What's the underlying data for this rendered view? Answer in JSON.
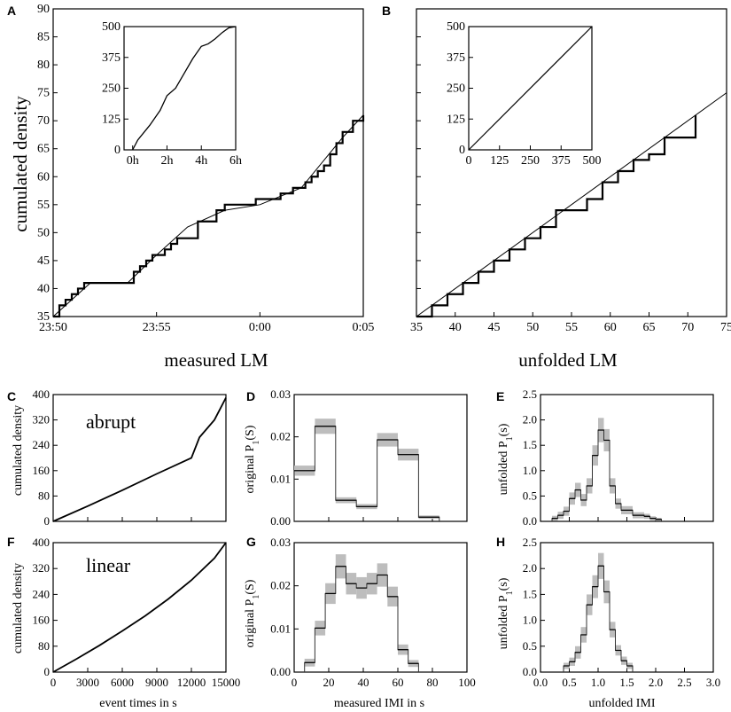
{
  "figure": {
    "colors": {
      "ink": "#000000",
      "band": "#bdbdbd",
      "background": "#ffffff"
    }
  },
  "chart_data": [
    {
      "id": "A",
      "type": "line",
      "panel_label": "A",
      "xlabel": "measured LM",
      "ylabel": "cumulated density",
      "xlim": [
        0,
        15
      ],
      "ylim": [
        35,
        90
      ],
      "x_tick_labels": [
        "23:50",
        "23:55",
        "0:00",
        "0:05"
      ],
      "x_tick_values": [
        0,
        5,
        10,
        15
      ],
      "y_ticks": [
        35,
        40,
        45,
        50,
        55,
        60,
        65,
        70,
        75,
        80,
        85,
        90
      ],
      "series": [
        {
          "name": "measured staircase",
          "x": [
            0.0,
            0.3,
            0.6,
            0.9,
            1.2,
            1.5,
            1.8,
            3.6,
            3.9,
            4.2,
            4.5,
            4.8,
            5.1,
            5.4,
            5.7,
            6.0,
            7.0,
            7.9,
            8.3,
            8.6,
            9.0,
            9.4,
            9.8,
            10.2,
            10.6,
            11.0,
            11.3,
            11.6,
            11.9,
            12.2,
            12.5,
            12.8,
            13.1,
            13.4,
            13.7,
            14.0,
            14.5,
            15.0
          ],
          "y": [
            35,
            37,
            38,
            39,
            40,
            41,
            41,
            41,
            43,
            44,
            45,
            46,
            46,
            47,
            48,
            49,
            52,
            54,
            55,
            55,
            55,
            55,
            56,
            56,
            56,
            57,
            57,
            58,
            58,
            59,
            60,
            61,
            62,
            64,
            66,
            68,
            70,
            71
          ]
        },
        {
          "name": "smooth fit",
          "x": [
            0.0,
            1.8,
            3.6,
            5.0,
            6.5,
            8.3,
            10.0,
            12.0,
            14.0,
            15.0
          ],
          "y": [
            35,
            41,
            41,
            46,
            51,
            54,
            55,
            58,
            67,
            71
          ]
        }
      ],
      "inset": {
        "type": "line",
        "xlim": [
          -0.5,
          6
        ],
        "ylim": [
          0,
          500
        ],
        "x_tick_labels": [
          "0h",
          "2h",
          "4h",
          "6h"
        ],
        "x_tick_values": [
          0,
          2,
          4,
          6
        ],
        "y_ticks": [
          0,
          125,
          250,
          375,
          500
        ],
        "series": [
          {
            "name": "cumulative events",
            "x": [
              0.0,
              0.3,
              1.0,
              1.6,
              2.0,
              2.5,
              3.0,
              3.5,
              4.0,
              4.4,
              4.8,
              5.2,
              5.6,
              6.0
            ],
            "y": [
              0,
              40,
              100,
              160,
              220,
              250,
              310,
              370,
              420,
              430,
              450,
              475,
              495,
              510
            ]
          }
        ]
      }
    },
    {
      "id": "B",
      "type": "line",
      "panel_label": "B",
      "xlabel": "unfolded LM",
      "xlim": [
        35,
        75
      ],
      "ylim": [
        35,
        90
      ],
      "x_ticks": [
        35,
        40,
        45,
        50,
        55,
        60,
        65,
        70,
        75
      ],
      "series": [
        {
          "name": "unfolded staircase",
          "x": [
            35,
            37,
            39,
            41,
            43,
            45,
            47,
            49,
            51,
            53,
            55,
            57,
            59,
            61,
            63,
            65,
            67,
            69,
            71
          ],
          "y": [
            35,
            37,
            39,
            41,
            43,
            45,
            47,
            49,
            51,
            54,
            54,
            56,
            59,
            61,
            63,
            64,
            67,
            67,
            71
          ]
        },
        {
          "name": "unit diagonal",
          "x": [
            35,
            75
          ],
          "y": [
            35,
            75
          ]
        }
      ],
      "inset": {
        "type": "line",
        "xlim": [
          0,
          500
        ],
        "ylim": [
          0,
          500
        ],
        "x_ticks": [
          0,
          125,
          250,
          375,
          500
        ],
        "y_ticks": [
          0,
          125,
          250,
          375,
          500
        ],
        "series": [
          {
            "name": "unfolded cumulative",
            "x": [
              0,
              500
            ],
            "y": [
              0,
              500
            ]
          }
        ]
      }
    },
    {
      "id": "C",
      "type": "line",
      "panel_label": "C",
      "ylabel": "cumulated density",
      "annotation": "abrupt",
      "xlim": [
        0,
        15000
      ],
      "ylim": [
        0,
        400
      ],
      "y_ticks": [
        0,
        80,
        160,
        240,
        320,
        400
      ],
      "series": [
        {
          "name": "abrupt",
          "x": [
            0,
            3000,
            6000,
            9000,
            12000,
            12700,
            14000,
            15000
          ],
          "y": [
            0,
            48,
            98,
            150,
            200,
            265,
            320,
            390
          ]
        }
      ]
    },
    {
      "id": "F",
      "type": "line",
      "panel_label": "F",
      "ylabel": "cumulated density",
      "xlabel": "event times in s",
      "annotation": "linear",
      "xlim": [
        0,
        15000
      ],
      "ylim": [
        0,
        400
      ],
      "x_ticks": [
        0,
        3000,
        6000,
        9000,
        12000,
        15000
      ],
      "y_ticks": [
        0,
        80,
        160,
        240,
        320,
        400
      ],
      "series": [
        {
          "name": "linear",
          "x": [
            0,
            2000,
            4000,
            6000,
            8000,
            10000,
            12000,
            14000,
            15000
          ],
          "y": [
            0,
            40,
            82,
            127,
            174,
            226,
            284,
            352,
            400
          ]
        }
      ]
    },
    {
      "id": "D",
      "type": "bar",
      "panel_label": "D",
      "ylabel_main": "original P",
      "ylabel_sub": "1",
      "ylabel_tail": "(S)",
      "xlim": [
        0,
        100
      ],
      "ylim": [
        0,
        0.03
      ],
      "y_ticks": [
        0.0,
        0.01,
        0.02,
        0.03
      ],
      "bin_width": 12,
      "bin_starts": [
        0,
        12,
        24,
        36,
        48,
        60,
        72
      ],
      "values": [
        0.012,
        0.0225,
        0.005,
        0.0035,
        0.0193,
        0.0158,
        0.001
      ],
      "errors": [
        0.0012,
        0.0018,
        0.0007,
        0.0006,
        0.0016,
        0.0014,
        0.0004
      ]
    },
    {
      "id": "G",
      "type": "bar",
      "panel_label": "G",
      "ylabel_main": "original P",
      "ylabel_sub": "1",
      "ylabel_tail": "(S)",
      "xlabel": "measured IMI in s",
      "xlim": [
        0,
        100
      ],
      "ylim": [
        0,
        0.03
      ],
      "x_ticks": [
        0,
        20,
        40,
        60,
        80,
        100
      ],
      "y_ticks": [
        0.0,
        0.01,
        0.02,
        0.03
      ],
      "bin_width": 6,
      "bin_starts": [
        6,
        12,
        18,
        24,
        30,
        36,
        42,
        48,
        54,
        60,
        66
      ],
      "values": [
        0.0022,
        0.0102,
        0.0182,
        0.0245,
        0.0205,
        0.0195,
        0.0205,
        0.0225,
        0.0175,
        0.0052,
        0.002
      ],
      "errors": [
        0.0009,
        0.0017,
        0.0024,
        0.0028,
        0.0025,
        0.0025,
        0.0025,
        0.0027,
        0.0023,
        0.0012,
        0.0008
      ]
    },
    {
      "id": "E",
      "type": "bar",
      "panel_label": "E",
      "ylabel_main": "unfolded P",
      "ylabel_sub": "1",
      "ylabel_tail": "(s)",
      "xlim": [
        0,
        3
      ],
      "ylim": [
        0,
        2.5
      ],
      "y_ticks": [
        0.0,
        0.5,
        1.0,
        1.5,
        2.0,
        2.5
      ],
      "bin_width": 0.1,
      "bin_starts": [
        0.2,
        0.3,
        0.4,
        0.5,
        0.6,
        0.7,
        0.8,
        0.9,
        1.0,
        1.1,
        1.2,
        1.3,
        1.4,
        1.5,
        1.6,
        1.7,
        1.8,
        1.9,
        2.0
      ],
      "values": [
        0.06,
        0.12,
        0.2,
        0.45,
        0.62,
        0.42,
        0.7,
        1.3,
        1.8,
        1.6,
        0.7,
        0.35,
        0.22,
        0.22,
        0.12,
        0.12,
        0.1,
        0.06,
        0.04
      ],
      "errors": [
        0.05,
        0.07,
        0.09,
        0.12,
        0.14,
        0.12,
        0.15,
        0.2,
        0.24,
        0.22,
        0.15,
        0.1,
        0.08,
        0.08,
        0.06,
        0.06,
        0.05,
        0.04,
        0.03
      ]
    },
    {
      "id": "H",
      "type": "bar",
      "panel_label": "H",
      "ylabel_main": "unfolded P",
      "ylabel_sub": "1",
      "ylabel_tail": "(s)",
      "xlabel": "unfolded IMI",
      "xlim": [
        0,
        3
      ],
      "ylim": [
        0,
        2.5
      ],
      "x_ticks": [
        0.0,
        0.5,
        1.0,
        1.5,
        2.0,
        2.5,
        3.0
      ],
      "y_ticks": [
        0.0,
        0.5,
        1.0,
        1.5,
        2.0,
        2.5
      ],
      "bin_width": 0.1,
      "bin_starts": [
        0.4,
        0.5,
        0.6,
        0.7,
        0.8,
        0.9,
        1.0,
        1.1,
        1.2,
        1.3,
        1.4,
        1.5
      ],
      "values": [
        0.12,
        0.2,
        0.38,
        0.72,
        1.3,
        1.65,
        2.05,
        1.55,
        0.82,
        0.42,
        0.22,
        0.12
      ],
      "errors": [
        0.06,
        0.08,
        0.12,
        0.15,
        0.2,
        0.22,
        0.25,
        0.22,
        0.15,
        0.1,
        0.08,
        0.06
      ]
    }
  ]
}
